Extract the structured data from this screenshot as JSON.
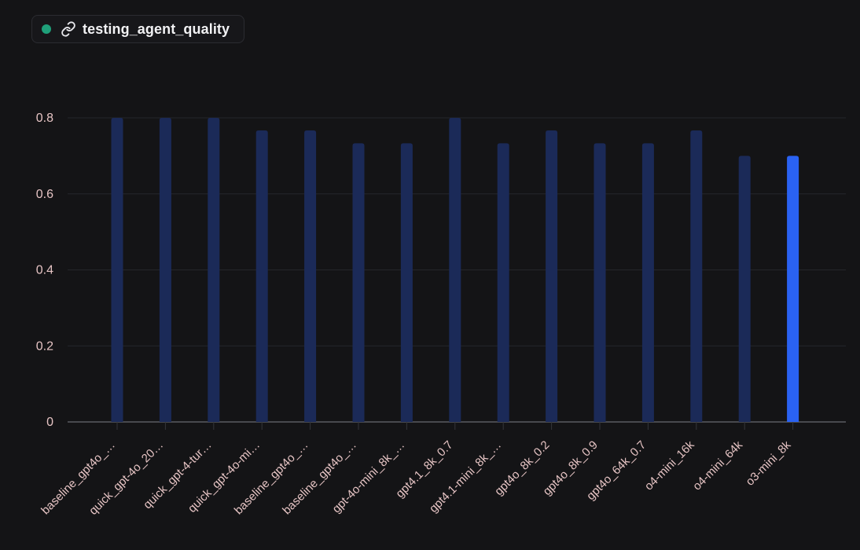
{
  "legend": {
    "label": "testing_agent_quality",
    "dot_color": "#1fa07a",
    "icon": "link-icon"
  },
  "colors": {
    "bar": "#1b2a58",
    "bar_highlight": "#2a62f2",
    "grid": "#25262b",
    "axis": "#5a5b60",
    "tick_text": "#e6c4c4"
  },
  "chart_data": {
    "type": "bar",
    "categories": [
      "baseline_gpt4o_…",
      "quick_gpt-4o_20…",
      "quick_gpt-4-tur…",
      "quick_gpt-4o-mi…",
      "baseline_gpt4o_…",
      "baseline_gpt4o_…",
      "gpt-4o-mini_8k_…",
      "gpt4.1_8k_0.7",
      "gpt4.1-mini_8k_…",
      "gpt4o_8k_0.2",
      "gpt4o_8k_0.9",
      "gpt4o_64k_0.7",
      "o4-mini_16k",
      "o4-mini_64k",
      "o3-mini_8k"
    ],
    "series": [
      {
        "name": "testing_agent_quality",
        "values": [
          0.8,
          0.8,
          0.8,
          0.767,
          0.767,
          0.733,
          0.733,
          0.8,
          0.733,
          0.767,
          0.733,
          0.733,
          0.767,
          0.7,
          0.7
        ]
      }
    ],
    "highlight_index": 14,
    "yticks": [
      "0",
      "0.2",
      "0.4",
      "0.6",
      "0.8"
    ],
    "ylim": [
      0,
      0.8
    ],
    "grid": true,
    "legend_position": "top-left",
    "title": "",
    "xlabel": "",
    "ylabel": ""
  }
}
